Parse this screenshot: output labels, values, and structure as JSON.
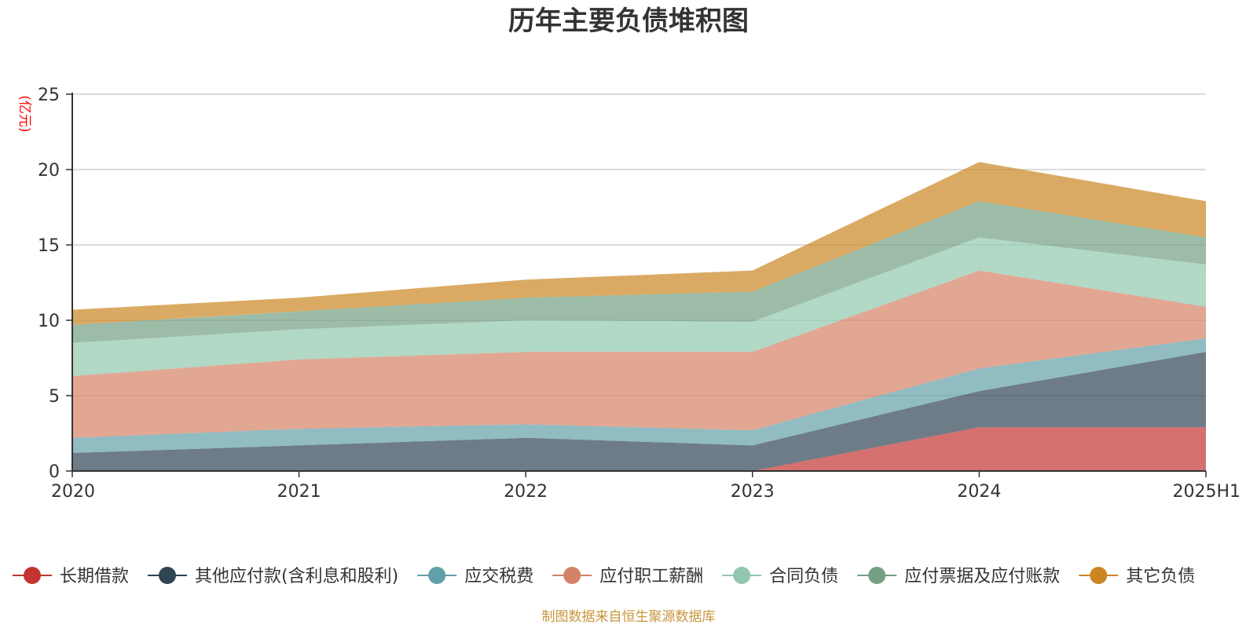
{
  "chart_data": {
    "type": "area",
    "stacked": true,
    "title": "历年主要负债堆积图",
    "unit_label": "(亿元)",
    "categories": [
      "2020",
      "2021",
      "2022",
      "2023",
      "2024",
      "2025H1"
    ],
    "yticks": [
      "0",
      "5",
      "10",
      "15",
      "20",
      "25"
    ],
    "ylim": [
      0,
      25
    ],
    "grid": true,
    "legend_position": "bottom",
    "series": [
      {
        "name": "长期借款",
        "color": "#c23531",
        "values": [
          0,
          0,
          0,
          0,
          2.9,
          2.9
        ]
      },
      {
        "name": "其他应付款(含利息和股利)",
        "color": "#2f4554",
        "values": [
          1.2,
          1.7,
          2.2,
          1.7,
          2.4,
          5.0
        ]
      },
      {
        "name": "应交税费",
        "color": "#61a0a8",
        "values": [
          1.0,
          1.1,
          0.9,
          1.0,
          1.5,
          0.9
        ]
      },
      {
        "name": "应付职工薪酬",
        "color": "#d48265",
        "values": [
          4.1,
          4.6,
          4.8,
          5.2,
          6.5,
          2.1
        ]
      },
      {
        "name": "合同负债",
        "color": "#91c7ae",
        "values": [
          2.2,
          2.0,
          2.1,
          2.0,
          2.2,
          2.8
        ]
      },
      {
        "name": "应付票据及应付账款",
        "color": "#749f83",
        "values": [
          1.2,
          1.2,
          1.5,
          2.0,
          2.4,
          1.8
        ]
      },
      {
        "name": "其它负债",
        "color": "#ca8622",
        "values": [
          1.0,
          0.9,
          1.2,
          1.4,
          2.6,
          2.4
        ]
      }
    ],
    "area_opacity": 0.7,
    "unit_color": "#ff0000",
    "source": "制图数据来自恒生聚源数据库",
    "source_color": "#c8963c"
  }
}
